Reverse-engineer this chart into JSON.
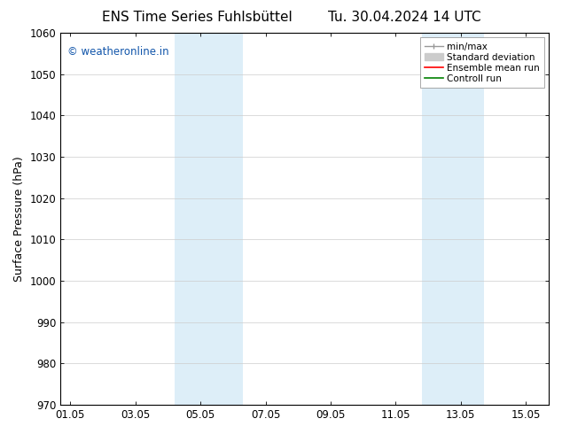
{
  "title_left": "ENS Time Series Fuhlsbüttel",
  "title_right": "Tu. 30.04.2024 14 UTC",
  "ylabel": "Surface Pressure (hPa)",
  "ylim": [
    970,
    1060
  ],
  "yticks": [
    970,
    980,
    990,
    1000,
    1010,
    1020,
    1030,
    1040,
    1050,
    1060
  ],
  "xtick_labels": [
    "01.05",
    "03.05",
    "05.05",
    "07.05",
    "09.05",
    "11.05",
    "13.05",
    "15.05"
  ],
  "xtick_positions": [
    0,
    2,
    4,
    6,
    8,
    10,
    12,
    14
  ],
  "xlim": [
    -0.3,
    14.7
  ],
  "shaded_bands": [
    {
      "x_start": 3.2,
      "x_end": 5.3
    },
    {
      "x_start": 10.8,
      "x_end": 12.7
    }
  ],
  "shade_color": "#ddeef8",
  "watermark_text": "© weatheronline.in",
  "watermark_color": "#1155aa",
  "bg_color": "#ffffff",
  "grid_color": "#cccccc",
  "title_fontsize": 11,
  "tick_fontsize": 8.5,
  "ylabel_fontsize": 9,
  "watermark_fontsize": 8.5,
  "legend_fontsize": 7.5
}
